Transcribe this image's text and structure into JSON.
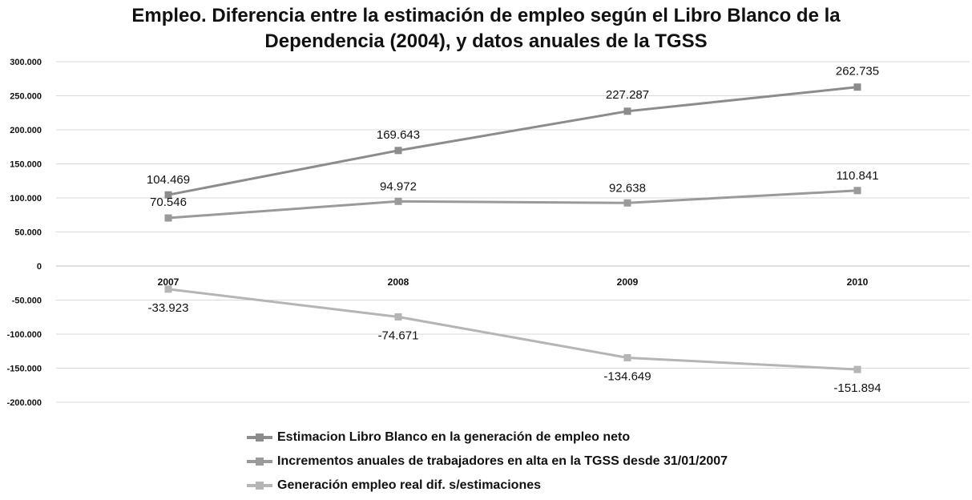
{
  "chart_data": {
    "type": "line",
    "title": [
      "Empleo. Diferencia entre la estimación de empleo según el Libro Blanco de la",
      "Dependencia (2004), y datos anuales de la TGSS"
    ],
    "categories": [
      "2007",
      "2008",
      "2009",
      "2010"
    ],
    "ylim": [
      -200000,
      300000
    ],
    "yticks": [
      300000,
      250000,
      200000,
      150000,
      100000,
      50000,
      0,
      -50000,
      -100000,
      -150000,
      -200000
    ],
    "ytick_labels": [
      "300.000",
      "250.000",
      "200.000",
      "150.000",
      "100.000",
      "50.000",
      "0",
      "-50.000",
      "-100.000",
      "-150.000",
      "-200.000"
    ],
    "grid": true,
    "legend_position": "bottom",
    "series": [
      {
        "name": "Estimacion Libro Blanco en la generación de empleo neto",
        "values": [
          104469,
          169643,
          227287,
          262735
        ],
        "labels": [
          "104.469",
          "169.643",
          "227.287",
          "262.735"
        ],
        "color": "#8c8c8c"
      },
      {
        "name": "Incrementos anuales de trabajadores en alta en la TGSS desde 31/01/2007",
        "values": [
          70546,
          94972,
          92638,
          110841
        ],
        "labels": [
          "70.546",
          "94.972",
          "92.638",
          "110.841"
        ],
        "color": "#9a9a9a"
      },
      {
        "name": "Generación empleo real dif. s/estimaciones",
        "values": [
          -33923,
          -74671,
          -134649,
          -151894
        ],
        "labels": [
          "-33.923",
          "-74.671",
          "-134.649",
          "-151.894"
        ],
        "color": "#b5b5b5"
      }
    ]
  }
}
